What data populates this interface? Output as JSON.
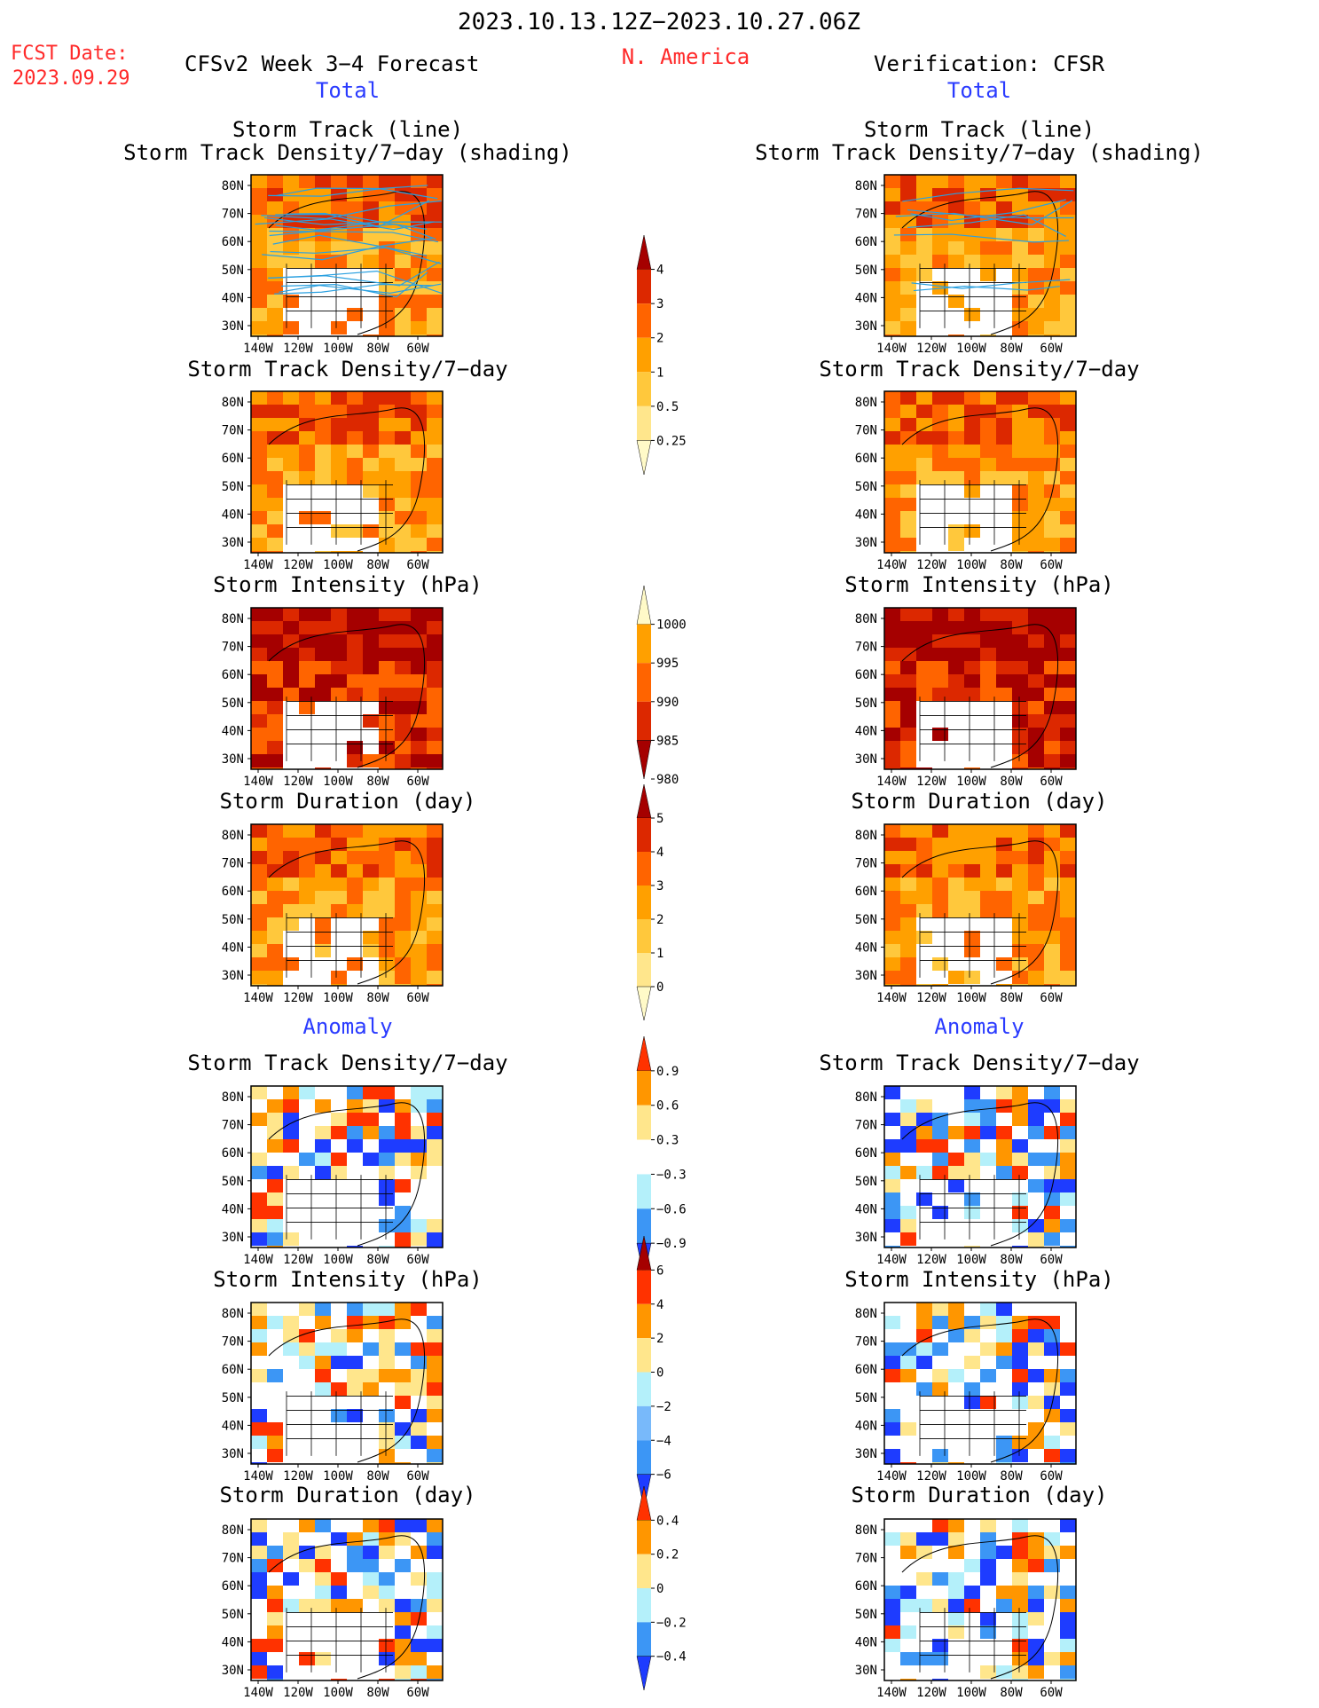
{
  "header": {
    "date_range": "2023.10.13.12Z−2023.10.27.06Z",
    "fcst_label": "FCST Date:",
    "fcst_date": "2023.09.29",
    "forecast_title": "CFSv2 Week 3−4 Forecast",
    "region": "N. America",
    "verification": "Verification: CFSR"
  },
  "sections": {
    "total": "Total",
    "anomaly": "Anomaly"
  },
  "panel_titles": {
    "track_line": "Storm Track (line)",
    "track_shading": "Storm Track Density/7−day (shading)",
    "density": "Storm Track Density/7−day",
    "intensity": "Storm Intensity (hPa)",
    "duration": "Storm Duration (day)"
  },
  "axes": {
    "lat_ticks": [
      "80N",
      "70N",
      "60N",
      "50N",
      "40N",
      "30N"
    ],
    "lon_ticks": [
      "140W",
      "120W",
      "100W",
      "80W",
      "60W"
    ]
  },
  "colorbars": [
    {
      "id": "density_total",
      "labels": [
        "4",
        "3",
        "2",
        "1",
        "0.5",
        "0.25"
      ],
      "colors": [
        "#a50000",
        "#dc2800",
        "#ff6400",
        "#ffa000",
        "#ffc83c",
        "#ffe68c",
        "#fffac8"
      ]
    },
    {
      "id": "intensity_total",
      "labels": [
        "1000",
        "995",
        "990",
        "985",
        "980"
      ],
      "colors": [
        "#fffac8",
        "#ffa000",
        "#ff6400",
        "#dc2800",
        "#a50000"
      ]
    },
    {
      "id": "duration_total",
      "labels": [
        "5",
        "4",
        "3",
        "2",
        "1",
        "0"
      ],
      "colors": [
        "#a50000",
        "#dc2800",
        "#ff6400",
        "#ffa000",
        "#ffc83c",
        "#ffe68c",
        "#fffac8"
      ]
    },
    {
      "id": "density_anom",
      "labels": [
        "0.9",
        "0.6",
        "0.3",
        "−0.3",
        "−0.6",
        "−0.9"
      ],
      "colors": [
        "#ff3200",
        "#ff9600",
        "#ffe68c",
        "#ffffff",
        "#b4f0fa",
        "#3c96f5",
        "#1e3cff"
      ]
    },
    {
      "id": "intensity_anom",
      "labels": [
        "6",
        "4",
        "2",
        "0",
        "−2",
        "−4",
        "−6"
      ],
      "colors": [
        "#a50000",
        "#ff3200",
        "#ff9600",
        "#ffe68c",
        "#b4f0fa",
        "#78b9fa",
        "#3c96f5",
        "#1e3cff"
      ]
    },
    {
      "id": "duration_anom",
      "labels": [
        "0.4",
        "0.2",
        "0",
        "−0.2",
        "−0.4"
      ],
      "colors": [
        "#ff3200",
        "#ff9600",
        "#ffe68c",
        "#b4f0fa",
        "#3c96f5",
        "#1e3cff"
      ]
    }
  ],
  "chart_data": {
    "type": "heatmap",
    "title": "2023.10.13.12Z−2023.10.27.06Z",
    "subtitle": "N. America",
    "domain": {
      "lon_range": [
        "140W",
        "50W"
      ],
      "lat_range": [
        "25N",
        "85N"
      ]
    },
    "panels": [
      {
        "row": "Storm Track (line) / Storm Track Density/7−day (shading)",
        "forecast": "total",
        "verification": "total"
      },
      {
        "row": "Storm Track Density/7−day",
        "forecast": "total",
        "verification": "total"
      },
      {
        "row": "Storm Intensity (hPa)",
        "forecast": "total",
        "verification": "total"
      },
      {
        "row": "Storm Duration (day)",
        "forecast": "total",
        "verification": "total"
      },
      {
        "row": "Storm Track Density/7−day",
        "forecast": "anomaly",
        "verification": "anomaly"
      },
      {
        "row": "Storm Intensity (hPa)",
        "forecast": "anomaly",
        "verification": "anomaly"
      },
      {
        "row": "Storm Duration (day)",
        "forecast": "anomaly",
        "verification": "anomaly"
      }
    ]
  }
}
